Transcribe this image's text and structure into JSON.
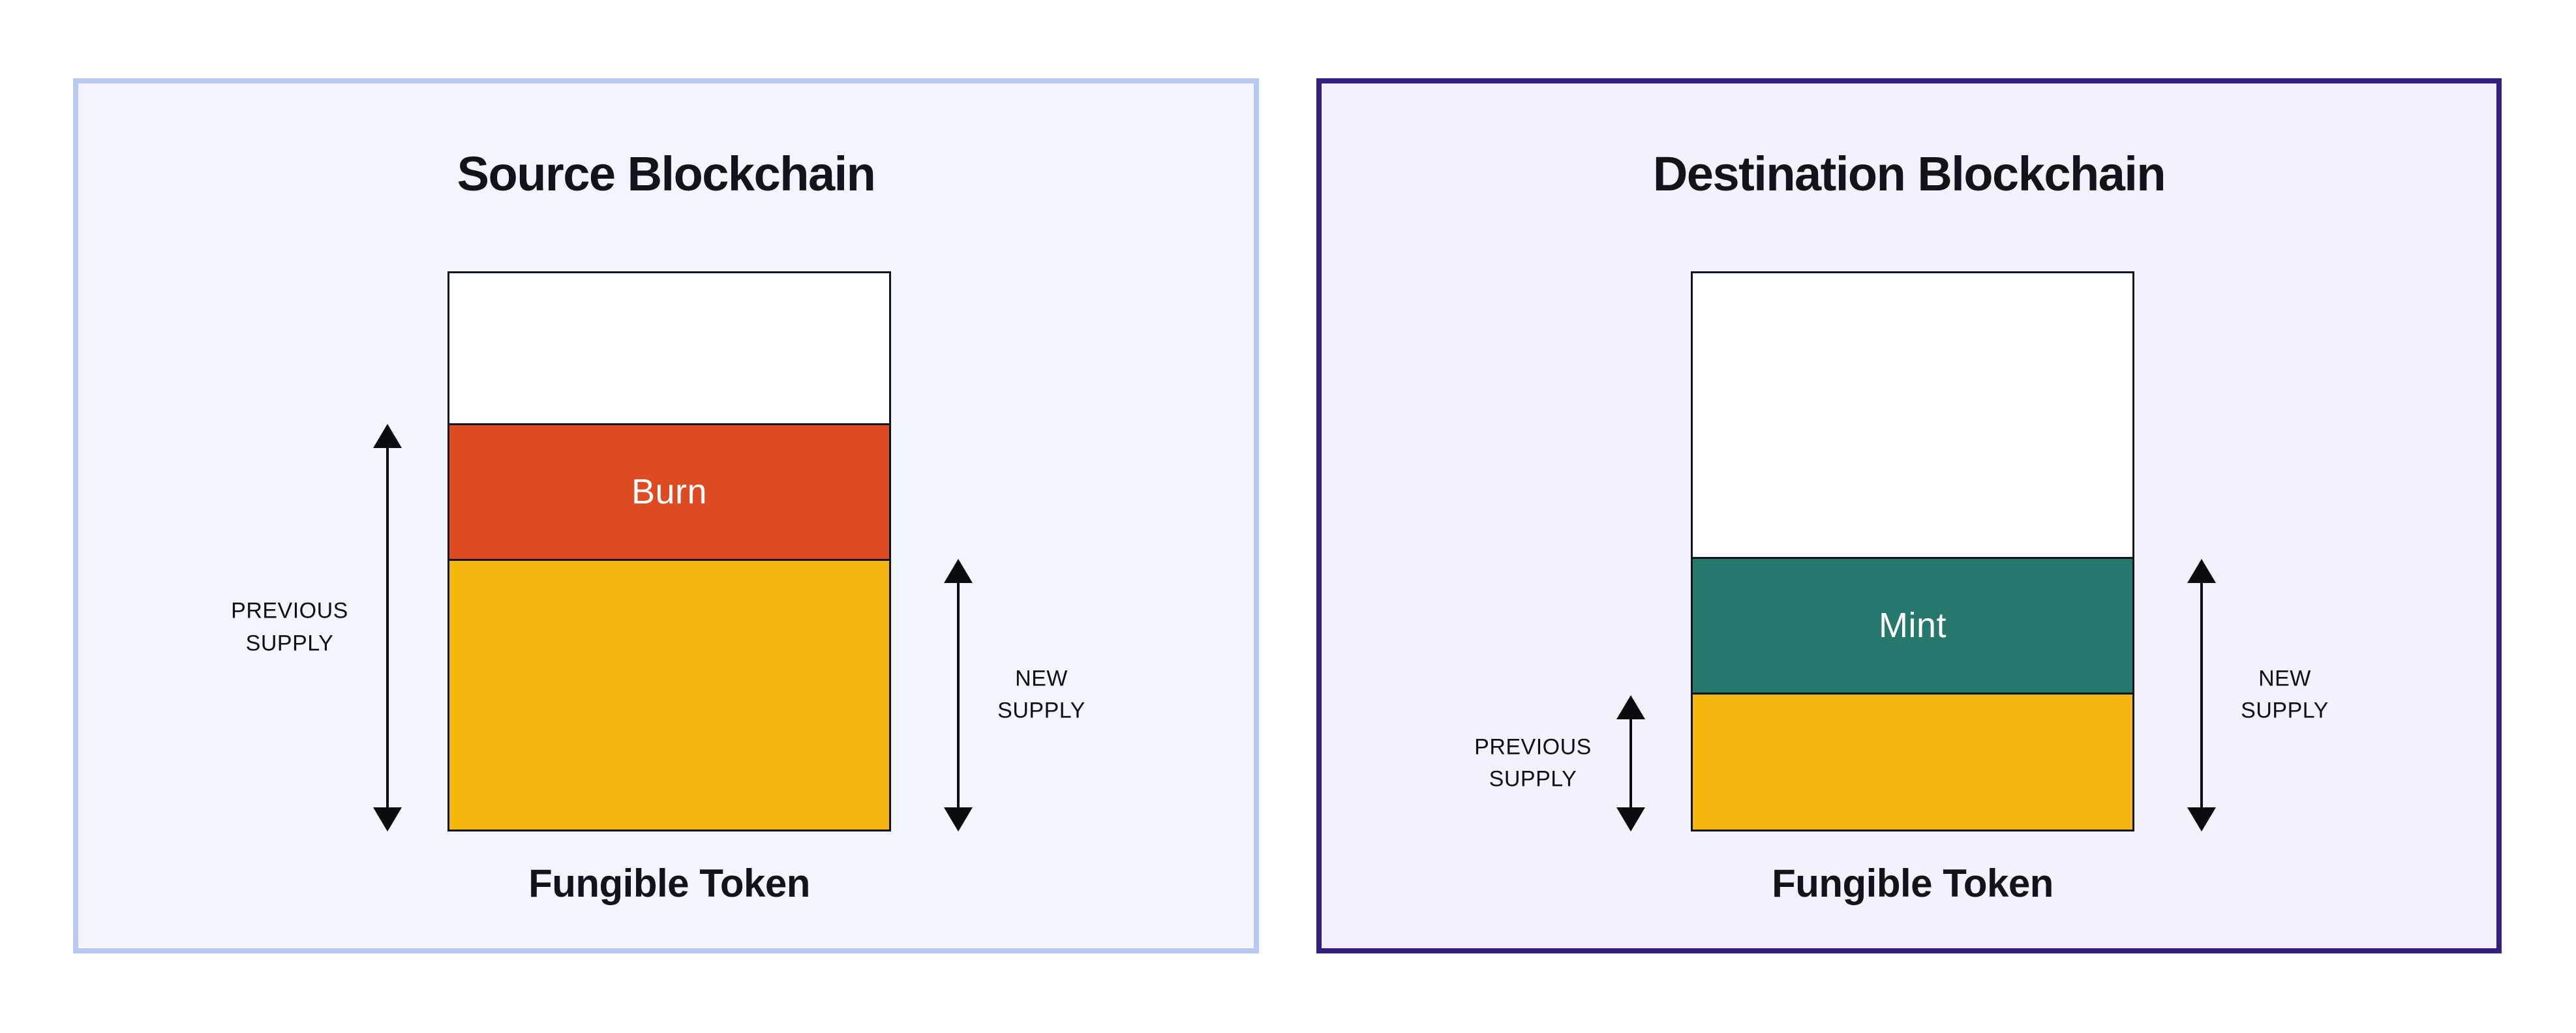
{
  "page_background": "#ffffff",
  "arrow_color": "#0b0c10",
  "text_color": "#0e0f14",
  "panels": [
    {
      "title": "Source Blockchain",
      "caption": "Fungible Token",
      "colors": {
        "background": "#f1f5fd",
        "border": "#b8c8f0"
      },
      "bar": {
        "border_color": "#10141f",
        "segments": [
          {
            "name": "unfilled-headroom",
            "label": "",
            "color": "#ffffff",
            "height_pct": 27.2
          },
          {
            "name": "burn",
            "label": "Burn",
            "color": "#dd4b22",
            "height_pct": 24.1,
            "label_color": "#ffffff"
          },
          {
            "name": "remaining-supply",
            "label": "",
            "color": "#f5b70d",
            "height_pct": 48.7
          }
        ]
      },
      "measures": [
        {
          "side": "left",
          "label": "PREVIOUS SUPPLY",
          "span_pct": 72.8
        },
        {
          "side": "right",
          "label": "NEW SUPPLY",
          "span_pct": 48.7
        }
      ]
    },
    {
      "title": "Destination Blockchain",
      "caption": "Fungible Token",
      "colors": {
        "background": "#f4f1fb",
        "border": "#34207f"
      },
      "bar": {
        "border_color": "#10141f",
        "segments": [
          {
            "name": "unfilled-headroom",
            "label": "",
            "color": "#ffffff",
            "height_pct": 51.3
          },
          {
            "name": "mint",
            "label": "Mint",
            "color": "#26786d",
            "height_pct": 24.3,
            "label_color": "#ffffff"
          },
          {
            "name": "previous-supply",
            "label": "",
            "color": "#f5b70d",
            "height_pct": 24.4
          }
        ]
      },
      "measures": [
        {
          "side": "left",
          "label": "PREVIOUS SUPPLY",
          "span_pct": 24.3
        },
        {
          "side": "right",
          "label": "NEW SUPPLY",
          "span_pct": 48.7
        }
      ]
    }
  ]
}
